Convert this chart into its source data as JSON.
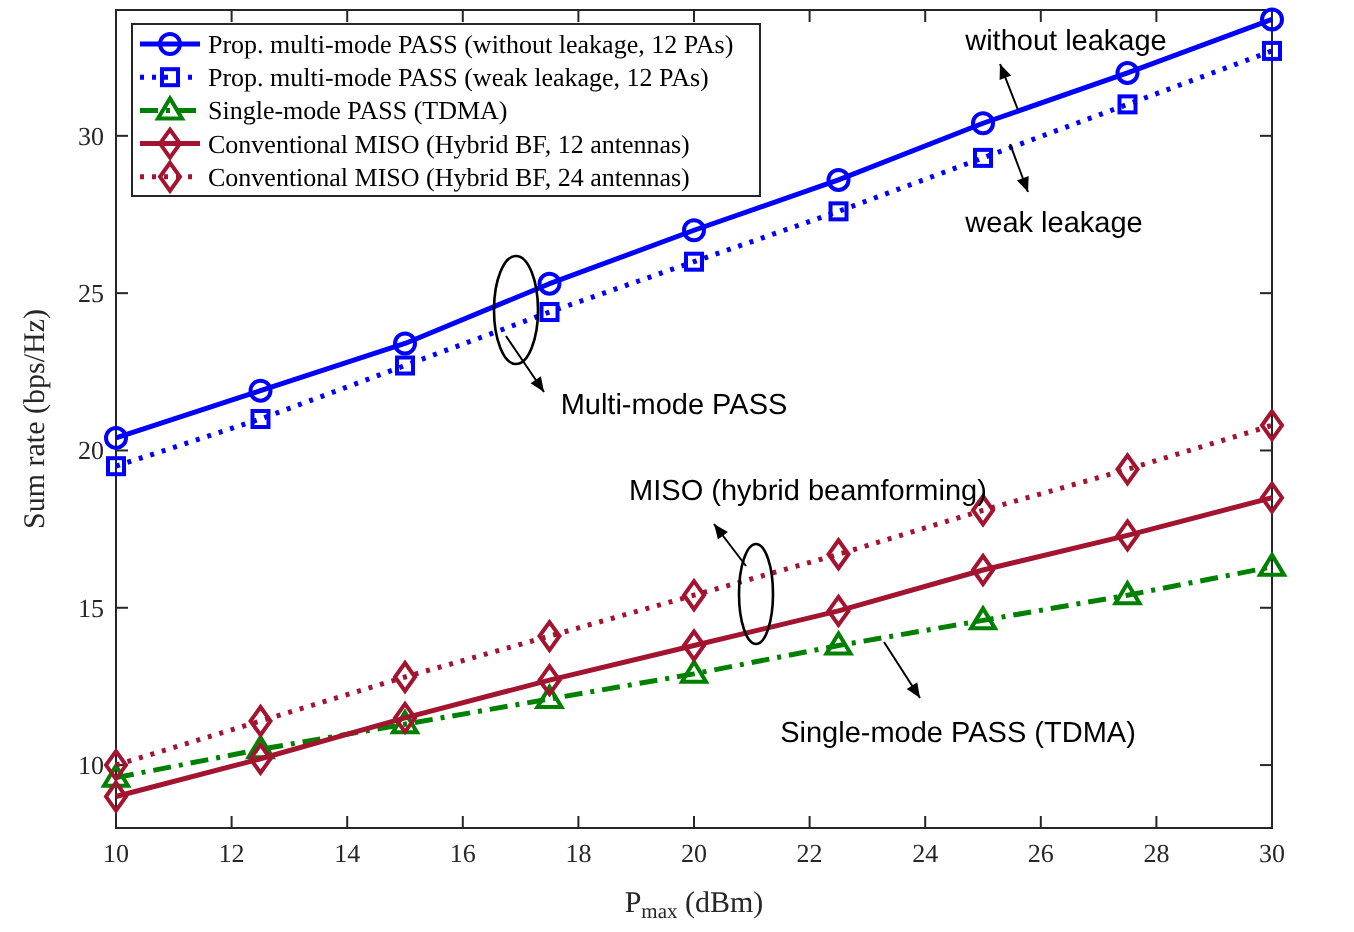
{
  "chart_data": {
    "type": "line",
    "xlabel": "P$_{max}$ (dBm)",
    "ylabel": "Sum rate (bps/Hz)",
    "x": [
      10,
      12.5,
      15,
      17.5,
      20,
      22.5,
      25,
      27.5,
      30
    ],
    "xlim": [
      10,
      30
    ],
    "xticks": [
      10,
      12,
      14,
      16,
      18,
      20,
      22,
      24,
      26,
      28,
      30
    ],
    "ylim": [
      8,
      34
    ],
    "yticks": [
      10,
      15,
      20,
      25,
      30
    ],
    "grid": false,
    "legend": "top left",
    "series": [
      {
        "name": "Prop. multi-mode PASS (without leakage, 12 PAs)",
        "color": "#0000ff",
        "marker": "circle",
        "line_style": "solid",
        "values": [
          20.4,
          21.9,
          23.4,
          25.3,
          27.0,
          28.6,
          30.4,
          32.0,
          33.7
        ]
      },
      {
        "name": "Prop. multi-mode PASS (weak leakage, 12 PAs)",
        "color": "#0000ff",
        "marker": "square",
        "line_style": "dotted",
        "values": [
          19.5,
          21.0,
          22.7,
          24.4,
          26.0,
          27.6,
          29.3,
          31.0,
          32.7
        ]
      },
      {
        "name": "Single-mode PASS (TDMA)",
        "color": "#008000",
        "marker": "triangle",
        "line_style": "dashed",
        "values": [
          9.6,
          10.5,
          11.3,
          12.1,
          12.9,
          13.8,
          14.6,
          15.4,
          16.3
        ]
      },
      {
        "name": "Conventional MISO (Hybrid BF, 12 antennas)",
        "color": "#a2142f",
        "marker": "diamond",
        "line_style": "solid",
        "values": [
          9.0,
          10.2,
          11.5,
          12.7,
          13.8,
          14.9,
          16.2,
          17.3,
          18.5
        ]
      },
      {
        "name": "Conventional MISO (Hybrid BF, 24 antennas)",
        "color": "#a2142f",
        "marker": "diamond",
        "line_style": "dotted",
        "values": [
          10.0,
          11.4,
          12.8,
          14.1,
          15.4,
          16.7,
          18.1,
          19.4,
          20.8
        ]
      }
    ],
    "annotations": [
      "without leakage",
      "weak leakage",
      "Multi-mode PASS",
      "MISO (hybrid beamforming)",
      "Single-mode PASS (TDMA)"
    ]
  }
}
